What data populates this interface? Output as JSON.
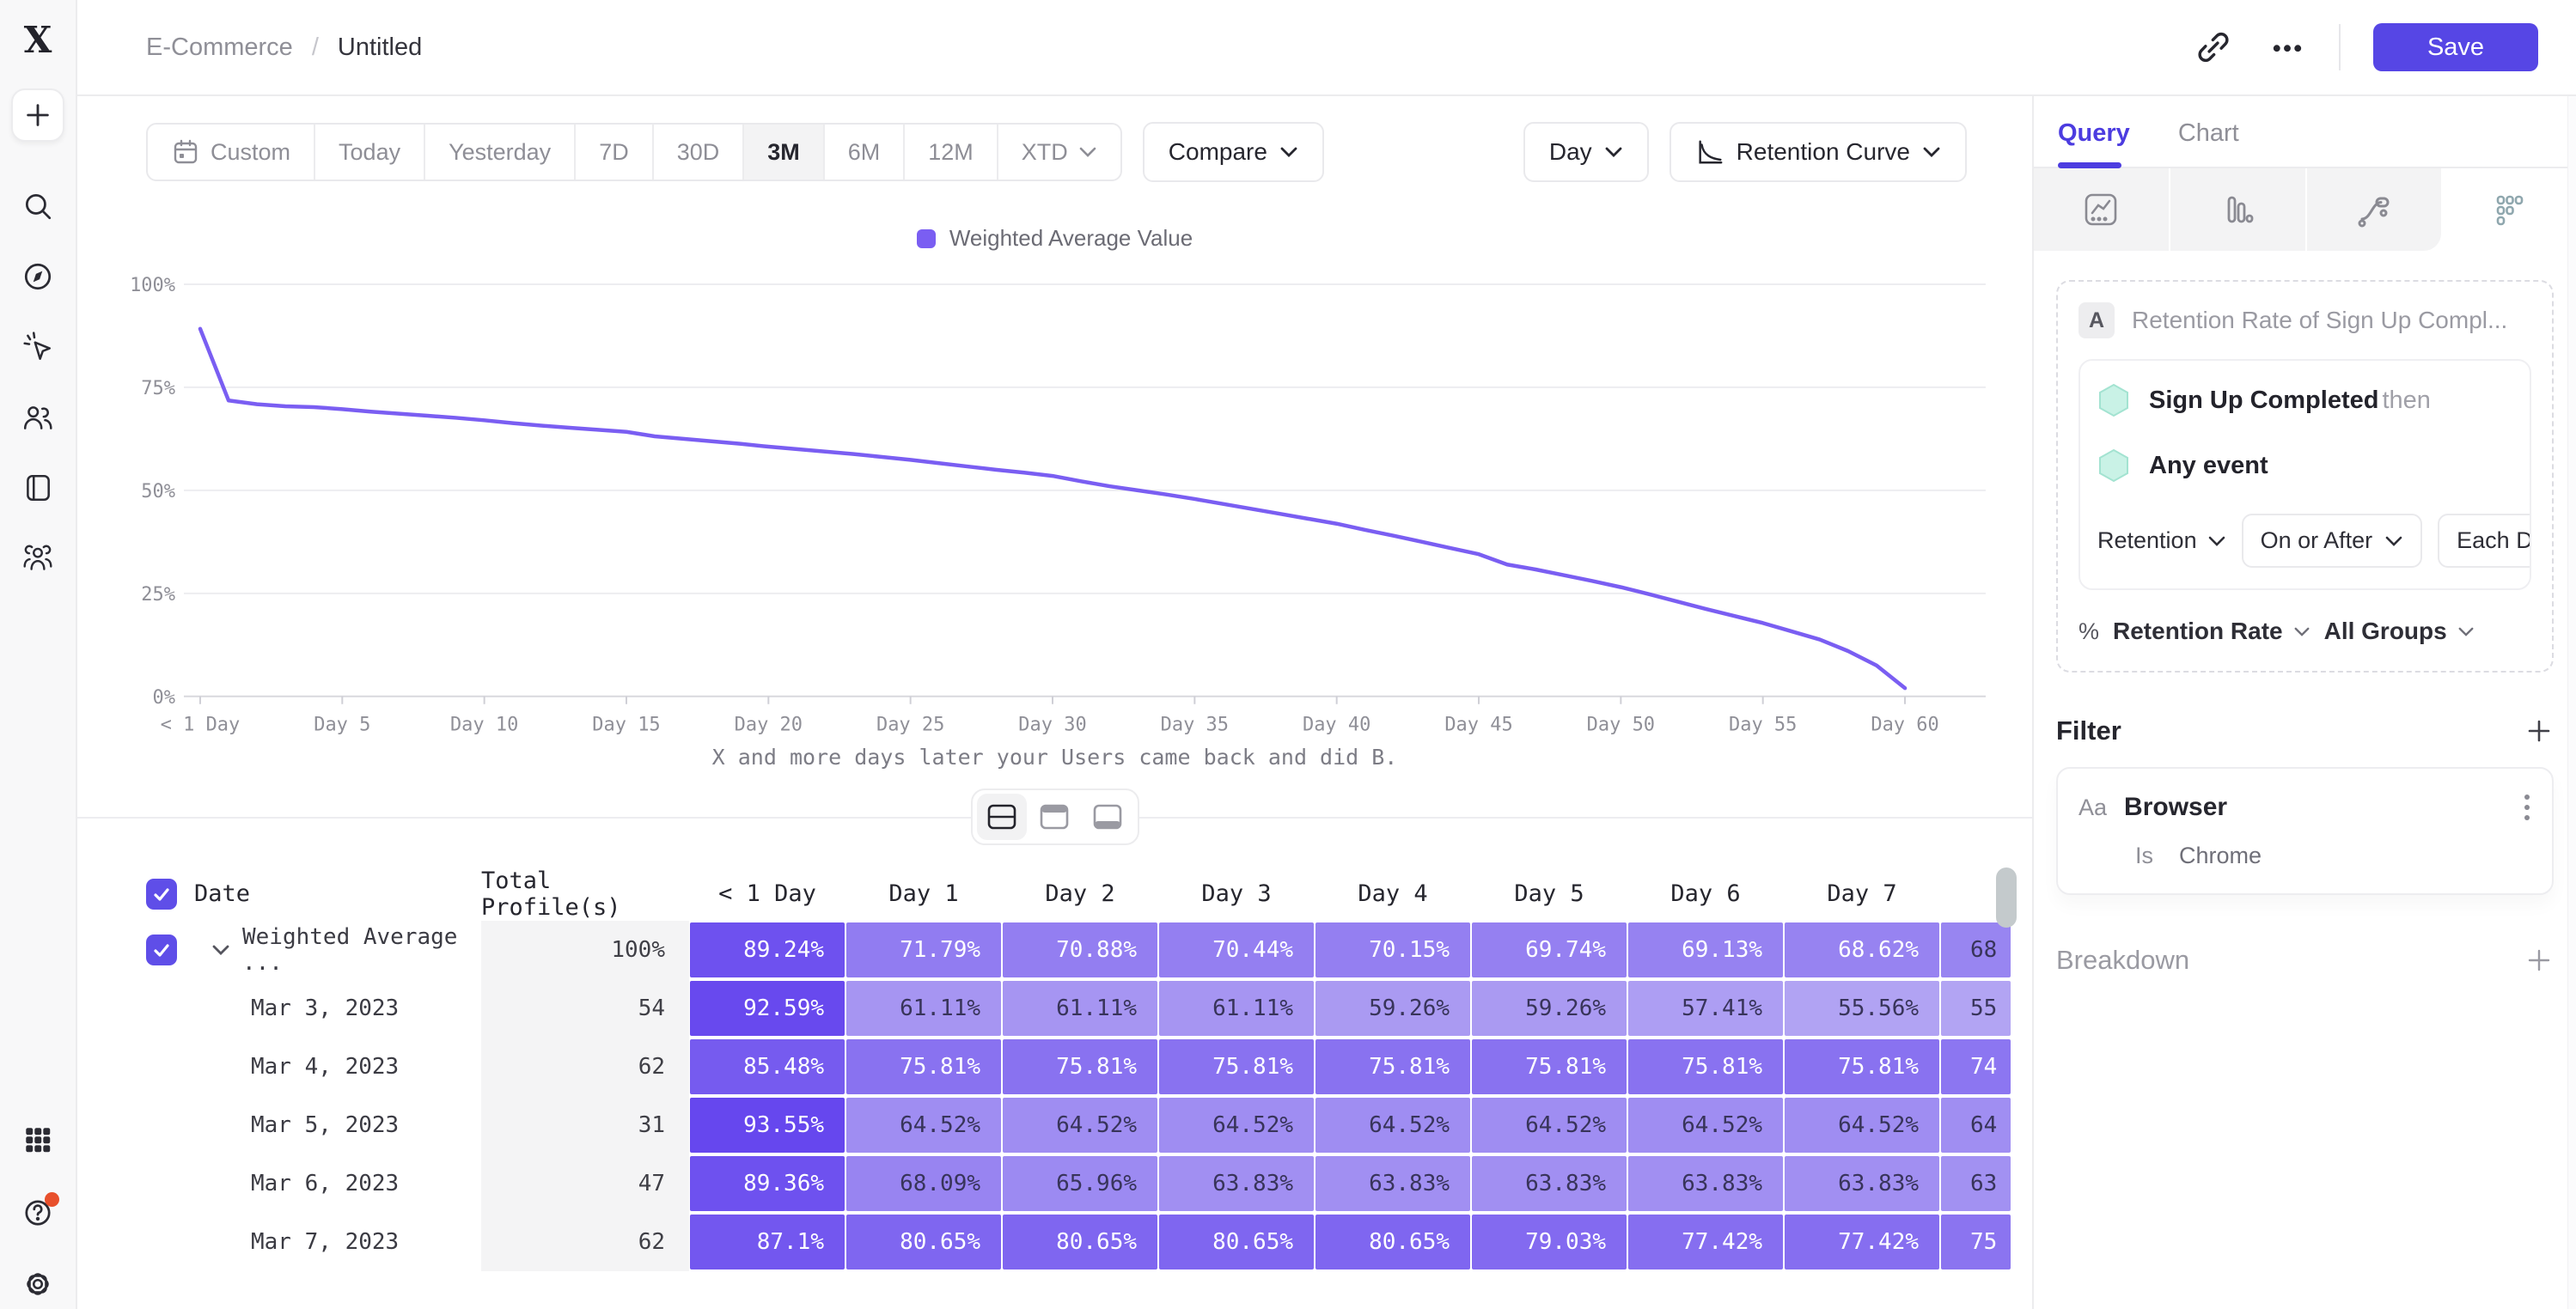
{
  "app": {
    "logo_glyph": "X"
  },
  "breadcrumb": {
    "items": [
      "E-Commerce",
      "Untitled"
    ],
    "separator": "/"
  },
  "topbar": {
    "save_label": "Save"
  },
  "sidebar": {
    "icons_top": [
      "plus",
      "search",
      "compass",
      "click-spark",
      "users",
      "library",
      "audience"
    ],
    "icons_bottom": [
      "apps-grid",
      "help",
      "settings"
    ],
    "help_has_notification": true
  },
  "toolbar": {
    "ranges": [
      "Custom",
      "Today",
      "Yesterday",
      "7D",
      "30D",
      "3M",
      "6M",
      "12M",
      "XTD"
    ],
    "selected_range": "3M",
    "calendar_icon_item": "Custom",
    "chevron_item": "XTD",
    "compare_label": "Compare",
    "granularity_label": "Day",
    "chart_type_label": "Retention Curve"
  },
  "chart_data": {
    "type": "line",
    "title": "",
    "legend": [
      "Weighted Average Value"
    ],
    "legend_position": "top-center",
    "grid": true,
    "ylim": [
      0,
      100
    ],
    "y_ticks": [
      "100%",
      "75%",
      "50%",
      "25%",
      "0%"
    ],
    "y_tick_values": [
      100,
      75,
      50,
      25,
      0
    ],
    "x_ticks": [
      "< 1 Day",
      "Day 5",
      "Day 10",
      "Day 15",
      "Day 20",
      "Day 25",
      "Day 30",
      "Day 35",
      "Day 40",
      "Day 45",
      "Day 50",
      "Day 55",
      "Day 60"
    ],
    "x_tick_days": [
      0,
      5,
      10,
      15,
      20,
      25,
      30,
      35,
      40,
      45,
      50,
      55,
      60
    ],
    "caption": "X and more days later your Users came back and did B.",
    "series": [
      {
        "name": "Weighted Average Value",
        "color": "#7a5ef2",
        "points": [
          [
            0,
            89.2
          ],
          [
            1,
            71.8
          ],
          [
            2,
            70.9
          ],
          [
            3,
            70.4
          ],
          [
            4,
            70.2
          ],
          [
            5,
            69.7
          ],
          [
            6,
            69.1
          ],
          [
            7,
            68.6
          ],
          [
            8,
            68.1
          ],
          [
            9,
            67.6
          ],
          [
            10,
            67.0
          ],
          [
            11,
            66.3
          ],
          [
            12,
            65.7
          ],
          [
            13,
            65.2
          ],
          [
            14,
            64.7
          ],
          [
            15,
            64.2
          ],
          [
            16,
            63.1
          ],
          [
            17,
            62.5
          ],
          [
            18,
            61.9
          ],
          [
            19,
            61.3
          ],
          [
            20,
            60.6
          ],
          [
            21,
            60.0
          ],
          [
            22,
            59.4
          ],
          [
            23,
            58.8
          ],
          [
            24,
            58.1
          ],
          [
            25,
            57.4
          ],
          [
            26,
            56.6
          ],
          [
            27,
            55.8
          ],
          [
            28,
            55.0
          ],
          [
            29,
            54.3
          ],
          [
            30,
            53.5
          ],
          [
            31,
            52.2
          ],
          [
            32,
            51.0
          ],
          [
            33,
            50.0
          ],
          [
            34,
            49.0
          ],
          [
            35,
            47.9
          ],
          [
            36,
            46.7
          ],
          [
            37,
            45.5
          ],
          [
            38,
            44.3
          ],
          [
            39,
            43.1
          ],
          [
            40,
            41.9
          ],
          [
            41,
            40.4
          ],
          [
            42,
            39.0
          ],
          [
            43,
            37.5
          ],
          [
            44,
            36.0
          ],
          [
            45,
            34.5
          ],
          [
            46,
            32.0
          ],
          [
            47,
            30.8
          ],
          [
            48,
            29.4
          ],
          [
            49,
            28.0
          ],
          [
            50,
            26.5
          ],
          [
            51,
            24.8
          ],
          [
            52,
            23.0
          ],
          [
            53,
            21.2
          ],
          [
            54,
            19.5
          ],
          [
            55,
            17.8
          ],
          [
            56,
            15.8
          ],
          [
            57,
            13.8
          ],
          [
            58,
            11.0
          ],
          [
            59,
            7.5
          ],
          [
            60,
            2.0
          ]
        ]
      }
    ]
  },
  "view_toggle": {
    "options": [
      "split-view",
      "top-panel-view",
      "bottom-panel-view"
    ],
    "active_index": 0
  },
  "table": {
    "header": {
      "date": "Date",
      "total": "Total Profile(s)",
      "days": [
        "< 1 Day",
        "Day 1",
        "Day 2",
        "Day 3",
        "Day 4",
        "Day 5",
        "Day 6",
        "Day 7"
      ]
    },
    "select_all_checked": true,
    "rows": [
      {
        "label": "Weighted Average ...",
        "expandable": true,
        "checked": true,
        "total": "100%",
        "values": [
          89.24,
          71.79,
          70.88,
          70.44,
          70.15,
          69.74,
          69.13,
          68.62
        ],
        "partial": "68"
      },
      {
        "label": "Mar 3, 2023",
        "total": "54",
        "values": [
          92.59,
          61.11,
          61.11,
          61.11,
          59.26,
          59.26,
          57.41,
          55.56
        ],
        "partial": "55"
      },
      {
        "label": "Mar 4, 2023",
        "total": "62",
        "values": [
          85.48,
          75.81,
          75.81,
          75.81,
          75.81,
          75.81,
          75.81,
          75.81
        ],
        "partial": "74"
      },
      {
        "label": "Mar 5, 2023",
        "total": "31",
        "values": [
          93.55,
          64.52,
          64.52,
          64.52,
          64.52,
          64.52,
          64.52,
          64.52
        ],
        "partial": "64"
      },
      {
        "label": "Mar 6, 2023",
        "total": "47",
        "values": [
          89.36,
          68.09,
          65.96,
          63.83,
          63.83,
          63.83,
          63.83,
          63.83
        ],
        "partial": "63"
      },
      {
        "label": "Mar 7, 2023",
        "total": "62",
        "values": [
          87.1,
          80.65,
          80.65,
          80.65,
          80.65,
          79.03,
          77.42,
          77.42
        ],
        "partial": "75"
      }
    ],
    "value_suffix": "%"
  },
  "panel": {
    "tabs": [
      "Query",
      "Chart"
    ],
    "active_tab": "Query",
    "icon_tabs": [
      "insights",
      "funnel-bars",
      "flows",
      "retention-dots"
    ],
    "active_icon_tab": "retention-dots",
    "query": {
      "block_label": "A",
      "block_title": "Retention Rate of Sign Up Compl...",
      "events": [
        {
          "name": "Sign Up Completed",
          "suffix": "then"
        },
        {
          "name": "Any event",
          "suffix": ""
        }
      ],
      "controls": [
        {
          "label": "Retention",
          "bordered": false
        },
        {
          "label": "On or After",
          "bordered": true
        },
        {
          "label": "Each Day",
          "bordered": true
        }
      ],
      "metric_prefix": "%",
      "metric_label": "Retention Rate",
      "groups_label": "All Groups"
    },
    "filter": {
      "title": "Filter",
      "items": [
        {
          "type_badge": "Aa",
          "name": "Browser",
          "operator": "Is",
          "value": "Chrome"
        }
      ]
    },
    "breakdown": {
      "title": "Breakdown"
    }
  },
  "colors": {
    "accent": "#5646e5",
    "line": "#7a5ef2",
    "cell_scale_low": "#b2a4f3",
    "cell_scale_high": "#6546ee",
    "cell_scale_domain": [
      55,
      94
    ],
    "white_text_threshold": 68.5,
    "hexagon_fill": "#c9f2e6",
    "notification": "#e8502c"
  }
}
